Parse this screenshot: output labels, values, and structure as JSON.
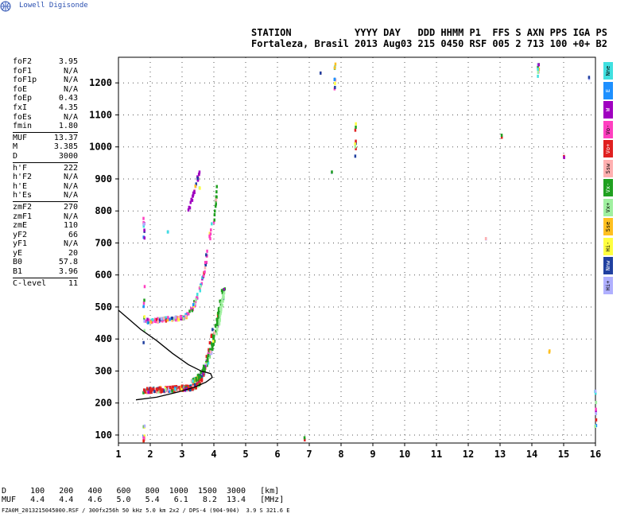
{
  "brand": "Lowell Digisonde",
  "header": {
    "line1": "STATION           YYYY DAY   DDD HHMM P1  FFS S AXN PPS IGA PS",
    "line2": "Fortaleza, Brasil 2013 Aug03 215 0450 RSF 005 2 713 100 +0+ B2"
  },
  "params": [
    {
      "label": "foF2",
      "value": "3.95"
    },
    {
      "label": "foF1",
      "value": "N/A"
    },
    {
      "label": "foF1p",
      "value": "N/A"
    },
    {
      "label": "foE",
      "value": "N/A"
    },
    {
      "label": "foEp",
      "value": "0.43"
    },
    {
      "label": "fxI",
      "value": "4.35"
    },
    {
      "label": "foEs",
      "value": "N/A"
    },
    {
      "label": "fmin",
      "value": "1.80"
    },
    {
      "sep": true
    },
    {
      "label": "MUF",
      "value": "13.37"
    },
    {
      "label": "M",
      "value": "3.385"
    },
    {
      "label": "D",
      "value": "3000"
    },
    {
      "sep": true
    },
    {
      "label": "h'F",
      "value": "222"
    },
    {
      "label": "h'F2",
      "value": "N/A"
    },
    {
      "label": "h'E",
      "value": "N/A"
    },
    {
      "label": "h'Es",
      "value": "N/A"
    },
    {
      "sep": true
    },
    {
      "label": "zmF2",
      "value": "270"
    },
    {
      "label": "zmF1",
      "value": "N/A"
    },
    {
      "label": "zmE",
      "value": "110"
    },
    {
      "label": "yF2",
      "value": "66"
    },
    {
      "label": "yF1",
      "value": "N/A"
    },
    {
      "label": "yE",
      "value": "20"
    },
    {
      "label": "B0",
      "value": "57.8"
    },
    {
      "label": "B1",
      "value": "3.96"
    },
    {
      "sep": true
    },
    {
      "label": "C-level",
      "value": "11"
    }
  ],
  "legend": [
    {
      "label": "Nne",
      "color": "#40e0e0"
    },
    {
      "label": "E",
      "color": "#1e90ff"
    },
    {
      "label": "W",
      "color": "#a000c0"
    },
    {
      "label": "Vo-",
      "color": "#ff40c0"
    },
    {
      "label": "Vo+",
      "color": "#e02020"
    },
    {
      "label": "Ssw",
      "color": "#ffb0b0"
    },
    {
      "label": "Vx-",
      "color": "#20a020"
    },
    {
      "label": "Vx+",
      "color": "#a0f0a0"
    },
    {
      "label": "Sse",
      "color": "#ffc020"
    },
    {
      "label": "Hi-",
      "color": "#ffff40"
    },
    {
      "label": "Nnw",
      "color": "#2040a0"
    },
    {
      "label": "Hi+",
      "color": "#b0b0ff"
    }
  ],
  "footer": {
    "line1": "D     100   200   400   600   800  1000  1500  3000   [km]",
    "line2": "MUF   4.4   4.4   4.6   5.0   5.4   6.1   8.2  13.4   [MHz]",
    "filename": "FZA0M_2013215045000.RSF / 300fx256h 50 kHz 5.0 km 2x2 / DPS-4 (904-904)  3.9 S 321.6 E"
  },
  "chart_data": {
    "type": "scatter",
    "title": "",
    "xlabel": "",
    "ylabel": "",
    "xlim": [
      1,
      16
    ],
    "ylim": [
      75,
      1280
    ],
    "xticks": [
      1,
      2,
      3,
      4,
      5,
      6,
      7,
      8,
      9,
      10,
      11,
      12,
      13,
      14,
      15,
      16
    ],
    "yticks": [
      100,
      200,
      300,
      400,
      500,
      600,
      700,
      800,
      900,
      1000,
      1100,
      1200
    ],
    "grid": "dotted",
    "series": [
      {
        "traces": [
          {
            "color_key": "Vo+",
            "x_range": [
              1.8,
              3.95
            ],
            "h_range": [
              230,
              470
            ],
            "desc_color": "#e02020"
          },
          {
            "color_key": "Vx-",
            "x_range": [
              3.2,
              4.35
            ],
            "h_range": [
              260,
              560
            ],
            "desc_color": "#20a020"
          },
          {
            "color_key": "Vo-",
            "x_range": [
              1.8,
              3.95
            ],
            "h_range": [
              440,
              730
            ],
            "desc_color": "#ff40c0"
          },
          {
            "color_key": "W",
            "x_range": [
              3.1,
              3.5
            ],
            "h_range": [
              800,
              930
            ],
            "desc_color": "#a000c0"
          }
        ]
      },
      {
        "profile": [
          [
            1.55,
            210
          ],
          [
            2.2,
            218
          ],
          [
            2.9,
            235
          ],
          [
            3.4,
            250
          ],
          [
            3.75,
            265
          ],
          [
            3.95,
            280
          ],
          [
            3.9,
            292
          ],
          [
            3.6,
            300
          ],
          [
            3.2,
            320
          ],
          [
            2.7,
            355
          ],
          [
            2.2,
            395
          ],
          [
            1.7,
            430
          ],
          [
            1.35,
            460
          ],
          [
            1.0,
            490
          ]
        ]
      }
    ]
  }
}
